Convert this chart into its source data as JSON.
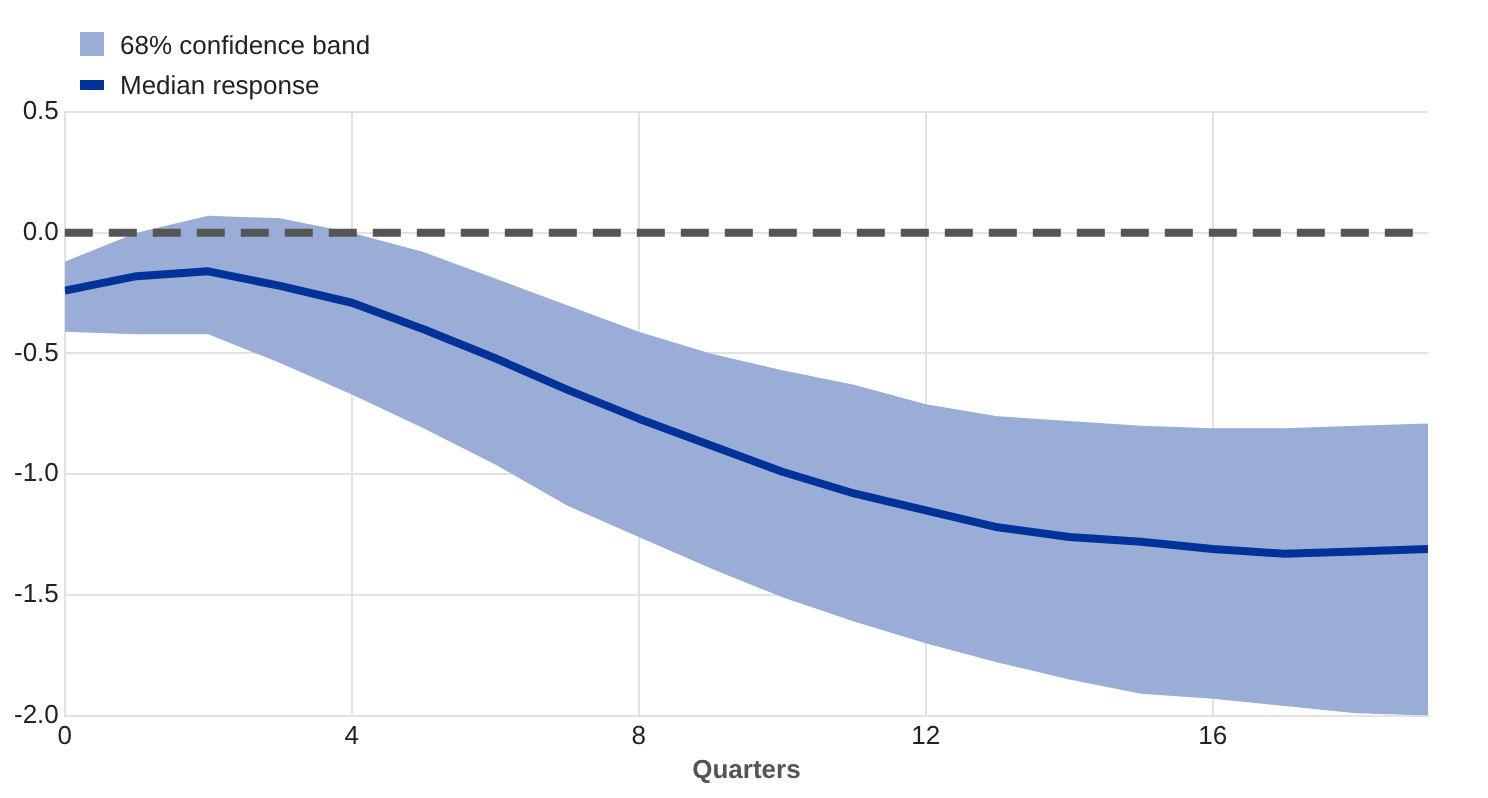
{
  "chart_data": {
    "type": "line",
    "xlabel": "Quarters",
    "x": [
      0,
      1,
      2,
      3,
      4,
      5,
      6,
      7,
      8,
      9,
      10,
      11,
      12,
      13,
      14,
      15,
      16,
      17,
      18,
      19
    ],
    "xlim": [
      0,
      19
    ],
    "xticks": [
      0,
      4,
      8,
      12,
      16
    ],
    "ylim": [
      -2,
      0.5
    ],
    "yticks": [
      {
        "value": -2,
        "label": "-2.0"
      },
      {
        "value": -1.5,
        "label": "-1.5"
      },
      {
        "value": -1,
        "label": "-1.0"
      },
      {
        "value": -0.5,
        "label": "-0.5"
      },
      {
        "value": 0,
        "label": "0.0"
      },
      {
        "value": 0.5,
        "label": "0.5"
      }
    ],
    "series": [
      {
        "name": "Median response",
        "type": "line",
        "color": "#003299",
        "values": [
          -0.24,
          -0.18,
          -0.16,
          -0.22,
          -0.29,
          -0.4,
          -0.52,
          -0.65,
          -0.77,
          -0.88,
          -0.99,
          -1.08,
          -1.15,
          -1.22,
          -1.26,
          -1.28,
          -1.31,
          -1.33,
          -1.32,
          -1.31
        ],
        "lower": [
          -0.41,
          -0.42,
          -0.42,
          -0.54,
          -0.67,
          -0.81,
          -0.96,
          -1.13,
          -1.26,
          -1.39,
          -1.51,
          -1.61,
          -1.7,
          -1.78,
          -1.85,
          -1.91,
          -1.93,
          -1.96,
          -1.99,
          -2.0
        ],
        "upper": [
          -0.12,
          0.0,
          0.07,
          0.06,
          0.0,
          -0.08,
          -0.19,
          -0.3,
          -0.41,
          -0.5,
          -0.57,
          -0.63,
          -0.71,
          -0.76,
          -0.78,
          -0.8,
          -0.81,
          -0.81,
          -0.8,
          -0.79
        ]
      }
    ],
    "annotations": [
      "68% confidence band"
    ],
    "ref_lines": [
      {
        "axis": "y",
        "value": 0,
        "color": "#555555",
        "line_style": "dashed"
      }
    ],
    "grid": true,
    "legend": "top left",
    "marker": "none",
    "line_style": "solid"
  }
}
